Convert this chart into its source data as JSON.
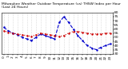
{
  "title": "Milwaukee Weather Outdoor Temperature (vs) THSW Index per Hour (Last 24 Hours)",
  "hours": [
    0,
    1,
    2,
    3,
    4,
    5,
    6,
    7,
    8,
    9,
    10,
    11,
    12,
    13,
    14,
    15,
    16,
    17,
    18,
    19,
    20,
    21,
    22,
    23
  ],
  "temp": [
    58,
    56,
    55,
    54,
    53,
    52,
    51,
    53,
    55,
    54,
    53,
    52,
    51,
    52,
    55,
    57,
    57,
    56,
    55,
    54,
    54,
    54,
    55,
    55
  ],
  "thsw": [
    62,
    58,
    55,
    53,
    50,
    48,
    46,
    50,
    54,
    52,
    50,
    48,
    68,
    75,
    68,
    60,
    52,
    46,
    40,
    37,
    35,
    38,
    40,
    42
  ],
  "temp_color": "#cc0000",
  "thsw_color": "#0000cc",
  "bg_color": "#ffffff",
  "plot_bg": "#ffffff",
  "grid_color": "#999999",
  "ylim": [
    30,
    80
  ],
  "ytick_vals": [
    30,
    35,
    40,
    45,
    50,
    55,
    60,
    65,
    70,
    75,
    80
  ],
  "ytick_labels": [
    "30",
    "35",
    "40",
    "45",
    "50",
    "55",
    "60",
    "65",
    "70",
    "75",
    "80"
  ],
  "title_fontsize": 3.2,
  "xlabel_fontsize": 3.0,
  "ylabel_fontsize": 3.2
}
